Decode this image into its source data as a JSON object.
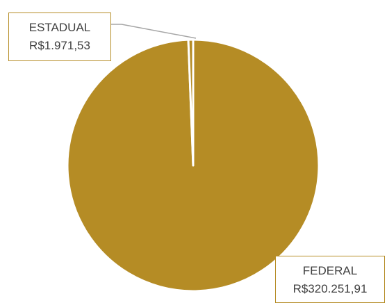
{
  "chart_data": {
    "type": "pie",
    "slices": [
      {
        "label": "FEDERAL",
        "value": 320251.91,
        "display": "R$320.251,91",
        "color": "#b58c25"
      },
      {
        "label": "ESTADUAL",
        "value": 1971.53,
        "display": "R$1.971,53",
        "color": "#b58c25"
      }
    ],
    "legend": "none",
    "data_labels": "callout"
  }
}
